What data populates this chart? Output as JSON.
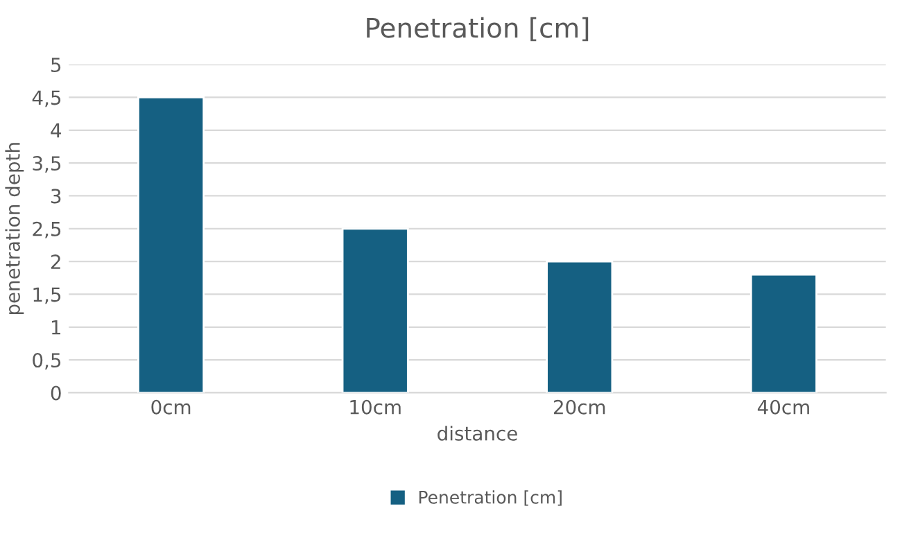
{
  "chart_data": {
    "type": "bar",
    "title": "Penetration [cm]",
    "xlabel": "distance",
    "ylabel": "penetration depth",
    "categories": [
      "0cm",
      "10cm",
      "20cm",
      "40cm"
    ],
    "series": [
      {
        "name": "Penetration [cm]",
        "color": "#156082",
        "values": [
          4.5,
          2.5,
          2.0,
          1.8
        ]
      }
    ],
    "ylim": [
      0,
      5
    ],
    "yticks": [
      0,
      {
        "value": 0.5,
        "label": "0,5"
      },
      1,
      {
        "value": 1.5,
        "label": "1,5"
      },
      2,
      {
        "value": 2.5,
        "label": "2,5"
      },
      3,
      {
        "value": 3.5,
        "label": "3,5"
      },
      4,
      {
        "value": 4.5,
        "label": "4,5"
      },
      5
    ],
    "grid": "y",
    "legend": "bottom"
  }
}
